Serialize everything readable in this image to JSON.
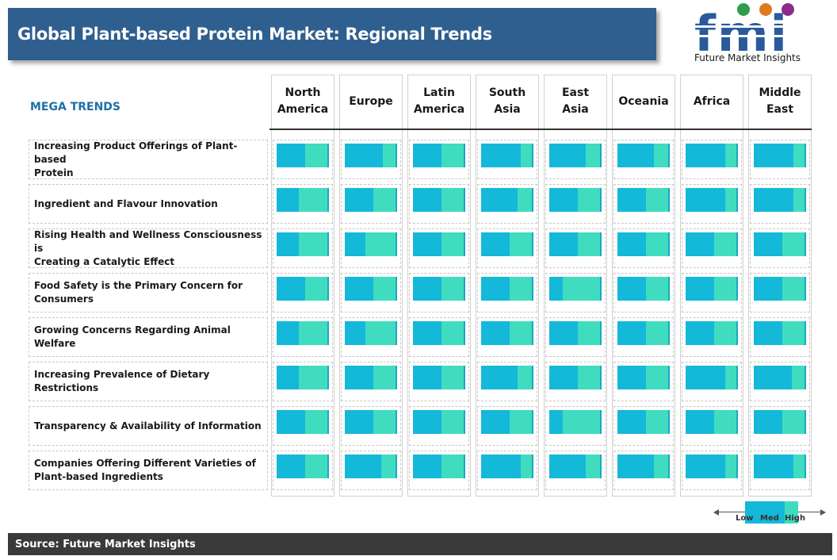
{
  "title": "Global Plant-based Protein Market: Regional Trends",
  "logo": {
    "letters": "fmi",
    "tagline": "Future Market Insights"
  },
  "mega_trends_label": "MEGA TRENDS",
  "source": "Source: Future Market Insights",
  "legend": {
    "low": "Low",
    "med": "Med",
    "high": "High"
  },
  "colors": {
    "low": "#14b8d8",
    "high": "#40dcc0",
    "title_bg": "#2f5f8f",
    "source_bg": "#3a3a3a",
    "header_text": "#1f6fa8"
  },
  "chart_data": {
    "type": "heatmap",
    "title": "Global Plant-based Protein Market: Regional Trends",
    "scale": [
      "Low",
      "Med",
      "High"
    ],
    "columns": [
      [
        "North",
        "America"
      ],
      [
        "Europe"
      ],
      [
        "Latin",
        "America"
      ],
      [
        "South",
        "Asia"
      ],
      [
        "East",
        "Asia"
      ],
      [
        "Oceania"
      ],
      [
        "Africa"
      ],
      [
        "Middle",
        "East"
      ]
    ],
    "rows": [
      [
        "Increasing Product Offerings of Plant-based",
        "Protein"
      ],
      [
        "Ingredient and Flavour Innovation"
      ],
      [
        "Rising Health and  Wellness Consciousness is",
        "Creating a  Catalytic Effect"
      ],
      [
        "Food Safety is the Primary Concern for",
        "Consumers"
      ],
      [
        "Growing Concerns Regarding Animal Welfare"
      ],
      [
        "Increasing Prevalence of Dietary Restrictions"
      ],
      [
        "Transparency & Availability of Information"
      ],
      [
        "Companies Offering Different Varieties of",
        "Plant-based Ingredients"
      ]
    ],
    "values": [
      [
        0.55,
        0.72,
        0.55,
        0.75,
        0.7,
        0.7,
        0.75,
        0.75
      ],
      [
        0.42,
        0.55,
        0.55,
        0.7,
        0.55,
        0.55,
        0.75,
        0.75
      ],
      [
        0.42,
        0.4,
        0.55,
        0.55,
        0.55,
        0.55,
        0.55,
        0.55
      ],
      [
        0.55,
        0.55,
        0.55,
        0.55,
        0.25,
        0.55,
        0.55,
        0.55
      ],
      [
        0.42,
        0.4,
        0.55,
        0.55,
        0.55,
        0.55,
        0.55,
        0.55
      ],
      [
        0.42,
        0.55,
        0.55,
        0.7,
        0.55,
        0.55,
        0.75,
        0.72
      ],
      [
        0.55,
        0.55,
        0.55,
        0.55,
        0.25,
        0.55,
        0.55,
        0.55
      ],
      [
        0.55,
        0.7,
        0.55,
        0.75,
        0.7,
        0.7,
        0.75,
        0.75
      ]
    ]
  }
}
